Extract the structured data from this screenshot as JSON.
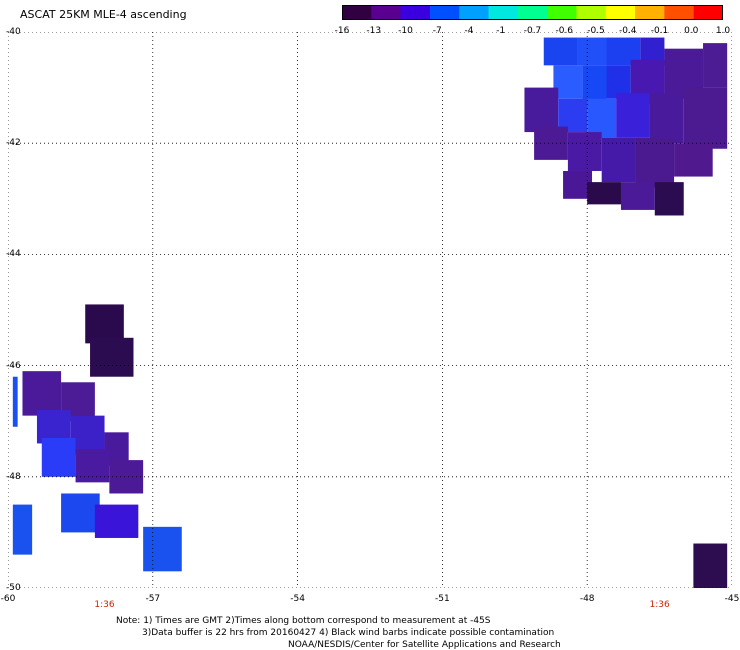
{
  "title": "ASCAT 25KM MLE-4 ascending",
  "colorbar": {
    "labels": [
      "-16",
      "-13",
      "-10",
      "-7",
      "-4",
      "-1",
      "-0.7",
      "-0.6",
      "-0.5",
      "-0.4",
      "-0.1",
      "0.0",
      "1.0"
    ],
    "colors": [
      "#300040",
      "#5a0090",
      "#3a00e0",
      "#0050ff",
      "#00a0ff",
      "#00e8e0",
      "#00ff90",
      "#40ff00",
      "#b0ff00",
      "#ffff00",
      "#ffb000",
      "#ff5000",
      "#ff0000"
    ]
  },
  "map": {
    "lon_ticks": [
      "-60",
      "-57",
      "-54",
      "-51",
      "-48",
      "-45"
    ],
    "lat_ticks": [
      "-40",
      "-42",
      "-44",
      "-46",
      "-48",
      "-50"
    ],
    "time_labels": [
      {
        "text": "1:36",
        "lon": -58
      },
      {
        "text": "1:36",
        "lon": -46.5
      }
    ],
    "lon_range": [
      -60,
      -45
    ],
    "lat_range": [
      -40,
      -50
    ],
    "grid": true
  },
  "swath_cells": [
    {
      "lon1": -48.9,
      "lon2": -48.2,
      "lat1": -40.1,
      "lat2": -40.6,
      "color": "#1a44f0"
    },
    {
      "lon1": -48.2,
      "lon2": -47.6,
      "lat1": -40.1,
      "lat2": -40.6,
      "color": "#2250f8"
    },
    {
      "lon1": -47.6,
      "lon2": -46.9,
      "lat1": -40.1,
      "lat2": -40.6,
      "color": "#1c40f0"
    },
    {
      "lon1": -46.9,
      "lon2": -46.4,
      "lat1": -40.1,
      "lat2": -40.6,
      "color": "#3020d0"
    },
    {
      "lon1": -48.7,
      "lon2": -48.1,
      "lat1": -40.6,
      "lat2": -41.2,
      "color": "#2a5cff"
    },
    {
      "lon1": -48.1,
      "lon2": -47.6,
      "lat1": -40.6,
      "lat2": -41.4,
      "color": "#1848f5"
    },
    {
      "lon1": -47.6,
      "lon2": -47.1,
      "lat1": -40.6,
      "lat2": -41.2,
      "color": "#2030e8"
    },
    {
      "lon1": -47.1,
      "lon2": -46.4,
      "lat1": -40.5,
      "lat2": -41.3,
      "color": "#4818b0"
    },
    {
      "lon1": -46.4,
      "lon2": -45.6,
      "lat1": -40.3,
      "lat2": -41.2,
      "color": "#4a1a98"
    },
    {
      "lon1": -45.6,
      "lon2": -45.1,
      "lat1": -40.2,
      "lat2": -41.0,
      "color": "#4b1c94"
    },
    {
      "lon1": -49.3,
      "lon2": -48.6,
      "lat1": -41.0,
      "lat2": -41.8,
      "color": "#481a9c"
    },
    {
      "lon1": -48.6,
      "lon2": -48.0,
      "lat1": -41.2,
      "lat2": -41.8,
      "color": "#2c3cf0"
    },
    {
      "lon1": -48.0,
      "lon2": -47.4,
      "lat1": -41.2,
      "lat2": -41.9,
      "color": "#2a58ff"
    },
    {
      "lon1": -47.4,
      "lon2": -46.7,
      "lat1": -41.1,
      "lat2": -41.9,
      "color": "#3a20d8"
    },
    {
      "lon1": -46.7,
      "lon2": -46.0,
      "lat1": -41.1,
      "lat2": -42.0,
      "color": "#4a1a9c"
    },
    {
      "lon1": -46.0,
      "lon2": -45.1,
      "lat1": -41.0,
      "lat2": -42.1,
      "color": "#4c1b92"
    },
    {
      "lon1": -49.1,
      "lon2": -48.4,
      "lat1": -41.7,
      "lat2": -42.3,
      "color": "#4c1a94"
    },
    {
      "lon1": -48.4,
      "lon2": -47.7,
      "lat1": -41.8,
      "lat2": -42.5,
      "color": "#4a1aa4"
    },
    {
      "lon1": -47.7,
      "lon2": -47.0,
      "lat1": -41.9,
      "lat2": -42.7,
      "color": "#461aa8"
    },
    {
      "lon1": -47.0,
      "lon2": -46.2,
      "lat1": -41.9,
      "lat2": -42.8,
      "color": "#4c1a90"
    },
    {
      "lon1": -46.2,
      "lon2": -45.4,
      "lat1": -42.0,
      "lat2": -42.6,
      "color": "#501a8e"
    },
    {
      "lon1": -48.5,
      "lon2": -47.9,
      "lat1": -42.5,
      "lat2": -43.0,
      "color": "#4a1896"
    },
    {
      "lon1": -48.0,
      "lon2": -47.3,
      "lat1": -42.7,
      "lat2": -43.1,
      "color": "#2a0a4a"
    },
    {
      "lon1": -47.3,
      "lon2": -46.6,
      "lat1": -42.7,
      "lat2": -43.2,
      "color": "#4a1a98"
    },
    {
      "lon1": -46.6,
      "lon2": -46.0,
      "lat1": -42.7,
      "lat2": -43.3,
      "color": "#2c0c50"
    },
    {
      "lon1": -58.4,
      "lon2": -57.6,
      "lat1": -44.9,
      "lat2": -45.6,
      "color": "#2a0a4c"
    },
    {
      "lon1": -58.3,
      "lon2": -57.4,
      "lat1": -45.5,
      "lat2": -46.2,
      "color": "#2c0c50"
    },
    {
      "lon1": -59.7,
      "lon2": -58.9,
      "lat1": -46.1,
      "lat2": -46.9,
      "color": "#4a1a9a"
    },
    {
      "lon1": -58.9,
      "lon2": -58.2,
      "lat1": -46.3,
      "lat2": -47.0,
      "color": "#4c1b96"
    },
    {
      "lon1": -59.4,
      "lon2": -58.7,
      "lat1": -46.8,
      "lat2": -47.4,
      "color": "#3a24d0"
    },
    {
      "lon1": -58.7,
      "lon2": -58.0,
      "lat1": -46.9,
      "lat2": -47.6,
      "color": "#3c20c8"
    },
    {
      "lon1": -58.0,
      "lon2": -57.5,
      "lat1": -47.2,
      "lat2": -47.8,
      "color": "#4a1a9c"
    },
    {
      "lon1": -59.3,
      "lon2": -58.6,
      "lat1": -47.3,
      "lat2": -48.0,
      "color": "#2a3cf8"
    },
    {
      "lon1": -58.6,
      "lon2": -57.9,
      "lat1": -47.5,
      "lat2": -48.1,
      "color": "#4a1aa0"
    },
    {
      "lon1": -57.9,
      "lon2": -57.2,
      "lat1": -47.7,
      "lat2": -48.3,
      "color": "#4c1a96"
    },
    {
      "lon1": -58.9,
      "lon2": -58.1,
      "lat1": -48.3,
      "lat2": -49.0,
      "color": "#1c48f0"
    },
    {
      "lon1": -58.2,
      "lon2": -57.3,
      "lat1": -48.5,
      "lat2": -49.1,
      "color": "#3a14d8"
    },
    {
      "lon1": -59.9,
      "lon2": -59.8,
      "lat1": -46.2,
      "lat2": -47.1,
      "color": "#1a50f0"
    },
    {
      "lon1": -59.9,
      "lon2": -59.5,
      "lat1": -48.5,
      "lat2": -49.4,
      "color": "#1a52f0"
    },
    {
      "lon1": -57.2,
      "lon2": -56.4,
      "lat1": -48.9,
      "lat2": -49.7,
      "color": "#1a52f0"
    },
    {
      "lon1": -45.8,
      "lon2": -45.1,
      "lat1": -49.2,
      "lat2": -50.0,
      "color": "#2e0c50"
    }
  ],
  "notes": [
    "Note: 1) Times are GMT 2)Times along bottom correspond to measurement at -45S",
    "3)Data buffer is 22 hrs from 20160427 4) Black wind barbs indicate possible contamination",
    "NOAA/NESDIS/Center for Satellite Applications and Research"
  ]
}
